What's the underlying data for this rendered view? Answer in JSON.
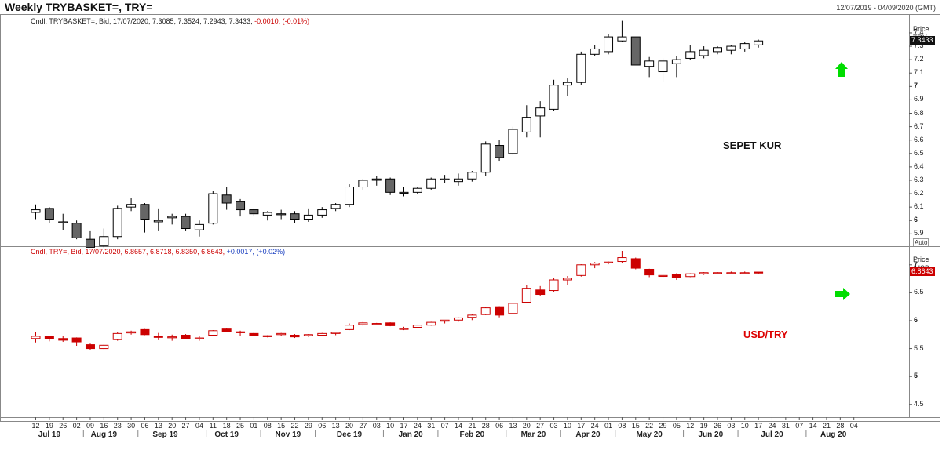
{
  "header": {
    "title": "Weekly TRYBASKET=, TRY=",
    "date_range": "12/07/2019 - 04/09/2020 (GMT)"
  },
  "colors": {
    "up_top": "#ffffff",
    "down_top": "#666666",
    "edge_top": "#000000",
    "up_bottom": "#ffffff",
    "down_bottom": "#cc0000",
    "edge_bottom": "#cc0000",
    "arrow": "#00dd00",
    "grid": "#999999"
  },
  "x_axis": {
    "day_labels": [
      "12",
      "19",
      "26",
      "02",
      "09",
      "16",
      "23",
      "30",
      "06",
      "13",
      "20",
      "27",
      "04",
      "11",
      "18",
      "25",
      "01",
      "08",
      "15",
      "22",
      "29",
      "06",
      "13",
      "20",
      "27",
      "03",
      "10",
      "17",
      "24",
      "31",
      "07",
      "14",
      "21",
      "28",
      "06",
      "13",
      "20",
      "27",
      "03",
      "10",
      "17",
      "24",
      "01",
      "08",
      "15",
      "22",
      "29",
      "05",
      "12",
      "19",
      "26",
      "03",
      "10",
      "17",
      "24",
      "31",
      "07",
      "14",
      "21",
      "28",
      "04"
    ],
    "month_labels": [
      {
        "label": "Jul 19",
        "index": 1
      },
      {
        "label": "Aug 19",
        "index": 5
      },
      {
        "label": "Sep 19",
        "index": 9.5
      },
      {
        "label": "Oct 19",
        "index": 14
      },
      {
        "label": "Nov 19",
        "index": 18.5
      },
      {
        "label": "Dec 19",
        "index": 23
      },
      {
        "label": "Jan 20",
        "index": 27.5
      },
      {
        "label": "Feb 20",
        "index": 32
      },
      {
        "label": "Mar 20",
        "index": 36.5
      },
      {
        "label": "Apr 20",
        "index": 40.5
      },
      {
        "label": "May 20",
        "index": 45
      },
      {
        "label": "Jun 20",
        "index": 49.5
      },
      {
        "label": "Jul 20",
        "index": 54
      },
      {
        "label": "Aug 20",
        "index": 58.5
      }
    ]
  },
  "chart_data": [
    {
      "type": "candlestick",
      "name": "TRYBASKET=",
      "legend": {
        "prefix": "Cndl, TRYBASKET=, Bid, 17/07/2020, 7.3085, 7.3524, 7.2943, 7.3433,",
        "change": "-0.0010, (-0.01%)"
      },
      "axis_title": [
        "Price",
        "TRY"
      ],
      "ylim": [
        5.82,
        7.47
      ],
      "y_ticks": [
        5.9,
        6,
        6.1,
        6.2,
        6.3,
        6.4,
        6.5,
        6.6,
        6.7,
        6.8,
        6.9,
        7,
        7.1,
        7.2,
        7.3,
        7.4
      ],
      "y_tick_labels": [
        "5.9",
        "6",
        "6.1",
        "6.2",
        "6.3",
        "6.4",
        "6.5",
        "6.6",
        "6.7",
        "6.8",
        "6.9",
        "7",
        "7.1",
        "7.2",
        "7.3",
        "7.4"
      ],
      "last_value": "7.3433",
      "auto_label": "Auto",
      "annotation": "SEPET KUR",
      "signal": "up",
      "ohlc": [
        [
          6.06,
          6.12,
          6.01,
          6.08
        ],
        [
          6.09,
          6.1,
          5.98,
          6.01
        ],
        [
          5.99,
          6.05,
          5.93,
          5.99
        ],
        [
          5.98,
          6.0,
          5.86,
          5.87
        ],
        [
          5.86,
          5.92,
          5.8,
          5.8
        ],
        [
          5.81,
          5.94,
          5.8,
          5.88
        ],
        [
          5.88,
          6.11,
          5.86,
          6.09
        ],
        [
          6.1,
          6.17,
          6.07,
          6.12
        ],
        [
          6.12,
          6.13,
          5.91,
          6.01
        ],
        [
          5.99,
          6.09,
          5.92,
          6.0
        ],
        [
          6.02,
          6.05,
          5.97,
          6.03
        ],
        [
          6.03,
          6.05,
          5.92,
          5.94
        ],
        [
          5.93,
          6.0,
          5.88,
          5.97
        ],
        [
          5.98,
          6.22,
          5.97,
          6.2
        ],
        [
          6.19,
          6.25,
          6.08,
          6.13
        ],
        [
          6.14,
          6.16,
          6.03,
          6.08
        ],
        [
          6.08,
          6.09,
          6.03,
          6.05
        ],
        [
          6.04,
          6.07,
          6.0,
          6.06
        ],
        [
          6.05,
          6.08,
          6.01,
          6.05
        ],
        [
          6.05,
          6.07,
          5.98,
          6.01
        ],
        [
          6.01,
          6.09,
          5.99,
          6.04
        ],
        [
          6.04,
          6.1,
          6.02,
          6.08
        ],
        [
          6.09,
          6.13,
          6.07,
          6.12
        ],
        [
          6.12,
          6.27,
          6.1,
          6.25
        ],
        [
          6.25,
          6.31,
          6.23,
          6.3
        ],
        [
          6.31,
          6.33,
          6.26,
          6.3
        ],
        [
          6.31,
          6.32,
          6.19,
          6.21
        ],
        [
          6.21,
          6.25,
          6.18,
          6.21
        ],
        [
          6.21,
          6.25,
          6.2,
          6.24
        ],
        [
          6.24,
          6.32,
          6.23,
          6.31
        ],
        [
          6.31,
          6.34,
          6.28,
          6.31
        ],
        [
          6.29,
          6.35,
          6.26,
          6.31
        ],
        [
          6.31,
          6.37,
          6.29,
          6.36
        ],
        [
          6.36,
          6.59,
          6.33,
          6.57
        ],
        [
          6.56,
          6.6,
          6.44,
          6.47
        ],
        [
          6.5,
          6.7,
          6.49,
          6.68
        ],
        [
          6.66,
          6.86,
          6.62,
          6.77
        ],
        [
          6.78,
          6.89,
          6.62,
          6.84
        ],
        [
          6.83,
          7.05,
          6.82,
          7.01
        ],
        [
          7.01,
          7.06,
          6.93,
          7.03
        ],
        [
          7.03,
          7.26,
          7.01,
          7.24
        ],
        [
          7.24,
          7.31,
          7.23,
          7.28
        ],
        [
          7.26,
          7.39,
          7.24,
          7.37
        ],
        [
          7.34,
          7.49,
          7.33,
          7.37
        ],
        [
          7.37,
          7.37,
          7.16,
          7.16
        ],
        [
          7.15,
          7.22,
          7.07,
          7.19
        ],
        [
          7.11,
          7.21,
          7.03,
          7.19
        ],
        [
          7.17,
          7.23,
          7.07,
          7.2
        ],
        [
          7.21,
          7.31,
          7.2,
          7.26
        ],
        [
          7.23,
          7.3,
          7.21,
          7.27
        ],
        [
          7.26,
          7.3,
          7.24,
          7.29
        ],
        [
          7.27,
          7.31,
          7.24,
          7.3
        ],
        [
          7.28,
          7.33,
          7.26,
          7.32
        ],
        [
          7.31,
          7.35,
          7.29,
          7.34
        ]
      ]
    },
    {
      "type": "candlestick",
      "name": "TRY=",
      "legend": {
        "prefix": "Cndl, TRY=, Bid, 17/07/2020, 6.8657, 6.8718, 6.8350, 6.8643,",
        "change": "+0.0017, (+0.02%)"
      },
      "axis_title": [
        "Price",
        "/USD"
      ],
      "ylim": [
        4.3,
        7.25
      ],
      "y_ticks": [
        4.5,
        5,
        5.5,
        6,
        6.5,
        7
      ],
      "y_tick_labels": [
        "4.5",
        "5",
        "5.5",
        "6",
        "6.5",
        "7"
      ],
      "last_value": "6.8643",
      "annotation": "USD/TRY",
      "signal": "up",
      "ohlc": [
        [
          5.68,
          5.79,
          5.61,
          5.72
        ],
        [
          5.72,
          5.73,
          5.63,
          5.67
        ],
        [
          5.68,
          5.73,
          5.62,
          5.65
        ],
        [
          5.69,
          5.7,
          5.55,
          5.62
        ],
        [
          5.57,
          5.59,
          5.48,
          5.5
        ],
        [
          5.5,
          5.57,
          5.49,
          5.56
        ],
        [
          5.66,
          5.79,
          5.64,
          5.77
        ],
        [
          5.78,
          5.82,
          5.75,
          5.8
        ],
        [
          5.84,
          5.85,
          5.74,
          5.75
        ],
        [
          5.72,
          5.78,
          5.65,
          5.7
        ],
        [
          5.7,
          5.75,
          5.64,
          5.71
        ],
        [
          5.74,
          5.76,
          5.67,
          5.68
        ],
        [
          5.68,
          5.72,
          5.64,
          5.69
        ],
        [
          5.74,
          5.83,
          5.72,
          5.82
        ],
        [
          5.85,
          5.86,
          5.79,
          5.81
        ],
        [
          5.8,
          5.82,
          5.72,
          5.79
        ],
        [
          5.77,
          5.79,
          5.72,
          5.73
        ],
        [
          5.72,
          5.74,
          5.7,
          5.73
        ],
        [
          5.75,
          5.78,
          5.73,
          5.77
        ],
        [
          5.74,
          5.76,
          5.69,
          5.71
        ],
        [
          5.73,
          5.76,
          5.71,
          5.75
        ],
        [
          5.74,
          5.78,
          5.73,
          5.77
        ],
        [
          5.77,
          5.8,
          5.74,
          5.79
        ],
        [
          5.84,
          5.95,
          5.83,
          5.92
        ],
        [
          5.93,
          5.98,
          5.91,
          5.96
        ],
        [
          5.95,
          5.96,
          5.92,
          5.95
        ],
        [
          5.96,
          5.97,
          5.9,
          5.91
        ],
        [
          5.86,
          5.89,
          5.83,
          5.86
        ],
        [
          5.88,
          5.93,
          5.86,
          5.92
        ],
        [
          5.92,
          5.98,
          5.91,
          5.97
        ],
        [
          5.99,
          6.01,
          5.95,
          6.01
        ],
        [
          6.01,
          6.06,
          5.98,
          6.05
        ],
        [
          6.06,
          6.12,
          6.01,
          6.1
        ],
        [
          6.11,
          6.25,
          6.1,
          6.23
        ],
        [
          6.25,
          6.26,
          6.06,
          6.1
        ],
        [
          6.13,
          6.32,
          6.11,
          6.31
        ],
        [
          6.33,
          6.64,
          6.32,
          6.58
        ],
        [
          6.55,
          6.62,
          6.44,
          6.47
        ],
        [
          6.54,
          6.76,
          6.52,
          6.73
        ],
        [
          6.73,
          6.8,
          6.64,
          6.76
        ],
        [
          6.81,
          7.01,
          6.79,
          7.0
        ],
        [
          7.0,
          7.05,
          6.94,
          7.03
        ],
        [
          7.04,
          7.06,
          7.01,
          7.05
        ],
        [
          7.06,
          7.25,
          7.03,
          7.13
        ],
        [
          7.11,
          7.13,
          6.92,
          6.94
        ],
        [
          6.92,
          6.93,
          6.78,
          6.82
        ],
        [
          6.81,
          6.84,
          6.77,
          6.81
        ],
        [
          6.83,
          6.85,
          6.73,
          6.77
        ],
        [
          6.79,
          6.85,
          6.78,
          6.84
        ],
        [
          6.84,
          6.87,
          6.82,
          6.86
        ],
        [
          6.86,
          6.87,
          6.83,
          6.86
        ],
        [
          6.85,
          6.88,
          6.83,
          6.86
        ],
        [
          6.85,
          6.88,
          6.84,
          6.86
        ],
        [
          6.87,
          6.87,
          6.84,
          6.86
        ]
      ]
    }
  ]
}
